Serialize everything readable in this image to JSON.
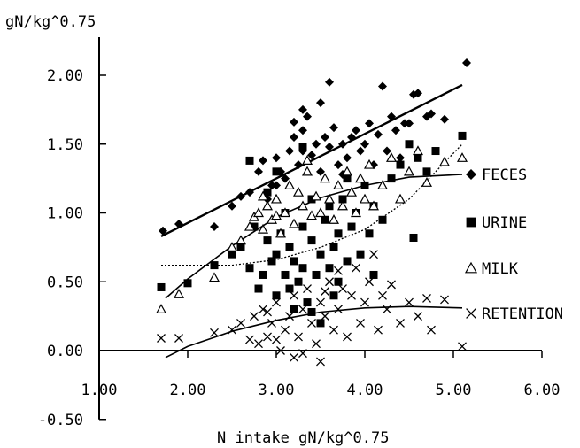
{
  "chart_data": {
    "type": "scatter",
    "ylabel": "gN/kg^0.75",
    "xlabel": "N intake  gN/kg^0.75",
    "xlim": [
      1.0,
      6.0
    ],
    "ylim": [
      -0.5,
      2.25
    ],
    "x_ticks": [
      "1.00",
      "2.00",
      "3.00",
      "4.00",
      "5.00",
      "6.00"
    ],
    "y_ticks": [
      "2.00",
      "1.50",
      "1.00",
      "0.50",
      "0.00",
      "-0.50"
    ],
    "legend_position": "right",
    "series": [
      {
        "name": "FECES",
        "marker": "diamond",
        "trend": "line",
        "trend_line": [
          [
            1.7,
            0.83
          ],
          [
            5.1,
            1.93
          ]
        ],
        "points": [
          [
            1.72,
            0.87
          ],
          [
            1.9,
            0.92
          ],
          [
            2.3,
            0.9
          ],
          [
            2.5,
            1.05
          ],
          [
            2.6,
            1.12
          ],
          [
            2.7,
            1.15
          ],
          [
            2.8,
            1.3
          ],
          [
            2.9,
            1.1
          ],
          [
            2.95,
            1.2
          ],
          [
            3.0,
            1.4
          ],
          [
            3.05,
            1.3
          ],
          [
            3.1,
            1.25
          ],
          [
            3.15,
            1.45
          ],
          [
            3.2,
            1.55
          ],
          [
            3.2,
            1.66
          ],
          [
            3.25,
            1.35
          ],
          [
            3.3,
            1.45
          ],
          [
            3.3,
            1.6
          ],
          [
            3.35,
            1.7
          ],
          [
            3.4,
            1.42
          ],
          [
            3.45,
            1.5
          ],
          [
            3.5,
            1.3
          ],
          [
            3.55,
            1.55
          ],
          [
            3.6,
            1.95
          ],
          [
            3.6,
            1.48
          ],
          [
            3.65,
            1.62
          ],
          [
            3.7,
            1.35
          ],
          [
            3.75,
            1.5
          ],
          [
            3.8,
            1.4
          ],
          [
            3.85,
            1.55
          ],
          [
            3.9,
            1.6
          ],
          [
            3.95,
            1.45
          ],
          [
            4.0,
            1.5
          ],
          [
            4.05,
            1.65
          ],
          [
            4.1,
            1.35
          ],
          [
            4.15,
            1.57
          ],
          [
            4.2,
            1.92
          ],
          [
            4.25,
            1.45
          ],
          [
            4.3,
            1.7
          ],
          [
            4.35,
            1.6
          ],
          [
            4.4,
            1.4
          ],
          [
            4.45,
            1.65
          ],
          [
            4.5,
            1.65
          ],
          [
            4.55,
            1.86
          ],
          [
            4.6,
            1.87
          ],
          [
            4.7,
            1.7
          ],
          [
            4.9,
            1.68
          ],
          [
            5.15,
            2.09
          ],
          [
            3.3,
            1.75
          ],
          [
            3.5,
            1.8
          ],
          [
            3.0,
            1.2
          ],
          [
            2.85,
            1.38
          ],
          [
            3.75,
            1.28
          ],
          [
            4.75,
            1.72
          ]
        ]
      },
      {
        "name": "URINE",
        "marker": "square",
        "trend": "dashed",
        "trend_line": [
          [
            1.7,
            0.62
          ],
          [
            2.5,
            0.62
          ],
          [
            3.0,
            0.66
          ],
          [
            3.5,
            0.75
          ],
          [
            4.0,
            0.88
          ],
          [
            4.5,
            1.1
          ],
          [
            5.1,
            1.5
          ]
        ],
        "points": [
          [
            1.7,
            0.46
          ],
          [
            2.0,
            0.49
          ],
          [
            2.3,
            0.62
          ],
          [
            2.5,
            0.7
          ],
          [
            2.6,
            0.75
          ],
          [
            2.7,
            0.6
          ],
          [
            2.7,
            1.38
          ],
          [
            2.75,
            0.9
          ],
          [
            2.8,
            0.45
          ],
          [
            2.85,
            0.55
          ],
          [
            2.9,
            0.8
          ],
          [
            2.95,
            0.65
          ],
          [
            3.0,
            0.7
          ],
          [
            3.0,
            0.4
          ],
          [
            3.05,
            0.85
          ],
          [
            3.1,
            0.55
          ],
          [
            3.1,
            1.0
          ],
          [
            3.15,
            0.75
          ],
          [
            3.2,
            0.3
          ],
          [
            3.2,
            0.65
          ],
          [
            3.25,
            0.5
          ],
          [
            3.3,
            0.9
          ],
          [
            3.3,
            0.6
          ],
          [
            3.35,
            0.35
          ],
          [
            3.4,
            0.8
          ],
          [
            3.4,
            1.1
          ],
          [
            3.45,
            0.55
          ],
          [
            3.5,
            0.7
          ],
          [
            3.5,
            0.2
          ],
          [
            3.55,
            0.95
          ],
          [
            3.6,
            0.6
          ],
          [
            3.6,
            1.05
          ],
          [
            3.65,
            0.75
          ],
          [
            3.7,
            0.5
          ],
          [
            3.7,
            0.85
          ],
          [
            3.75,
            1.1
          ],
          [
            3.8,
            0.65
          ],
          [
            3.85,
            0.9
          ],
          [
            3.9,
            1.0
          ],
          [
            3.95,
            0.7
          ],
          [
            4.0,
            1.2
          ],
          [
            4.05,
            0.85
          ],
          [
            4.1,
            1.05
          ],
          [
            4.2,
            0.95
          ],
          [
            4.3,
            1.25
          ],
          [
            4.4,
            1.35
          ],
          [
            4.5,
            1.5
          ],
          [
            4.6,
            1.4
          ],
          [
            4.7,
            1.3
          ],
          [
            4.8,
            1.45
          ],
          [
            5.1,
            1.56
          ],
          [
            4.55,
            0.82
          ],
          [
            3.3,
            1.48
          ],
          [
            3.0,
            1.3
          ],
          [
            2.9,
            1.15
          ],
          [
            3.15,
            0.45
          ],
          [
            3.4,
            0.28
          ],
          [
            3.65,
            0.4
          ],
          [
            4.1,
            0.55
          ],
          [
            3.8,
            1.25
          ]
        ]
      },
      {
        "name": "MILK",
        "marker": "triangle",
        "trend": "curve",
        "trend_line": [
          [
            1.75,
            0.38
          ],
          [
            2.0,
            0.52
          ],
          [
            2.5,
            0.76
          ],
          [
            3.0,
            0.97
          ],
          [
            3.5,
            1.11
          ],
          [
            4.0,
            1.2
          ],
          [
            4.5,
            1.26
          ],
          [
            5.1,
            1.28
          ]
        ],
        "points": [
          [
            1.7,
            0.3
          ],
          [
            1.9,
            0.41
          ],
          [
            2.3,
            0.53
          ],
          [
            2.5,
            0.75
          ],
          [
            2.6,
            0.8
          ],
          [
            2.7,
            0.9
          ],
          [
            2.75,
            0.97
          ],
          [
            2.8,
            1.0
          ],
          [
            2.85,
            0.88
          ],
          [
            2.9,
            1.05
          ],
          [
            2.95,
            0.95
          ],
          [
            3.0,
            1.1
          ],
          [
            3.05,
            0.85
          ],
          [
            3.1,
            1.0
          ],
          [
            3.15,
            1.2
          ],
          [
            3.2,
            0.92
          ],
          [
            3.25,
            1.15
          ],
          [
            3.3,
            1.05
          ],
          [
            3.35,
            1.3
          ],
          [
            3.4,
            0.98
          ],
          [
            3.45,
            1.12
          ],
          [
            3.5,
            1.0
          ],
          [
            3.55,
            1.25
          ],
          [
            3.6,
            1.1
          ],
          [
            3.65,
            0.95
          ],
          [
            3.7,
            1.2
          ],
          [
            3.75,
            1.05
          ],
          [
            3.8,
            1.3
          ],
          [
            3.85,
            1.15
          ],
          [
            3.9,
            1.0
          ],
          [
            3.95,
            1.25
          ],
          [
            4.0,
            1.1
          ],
          [
            4.05,
            1.35
          ],
          [
            4.1,
            1.05
          ],
          [
            4.2,
            1.2
          ],
          [
            4.3,
            1.4
          ],
          [
            4.4,
            1.1
          ],
          [
            4.5,
            1.3
          ],
          [
            4.6,
            1.45
          ],
          [
            4.7,
            1.22
          ],
          [
            4.9,
            1.37
          ],
          [
            5.1,
            1.4
          ],
          [
            3.35,
            1.38
          ],
          [
            3.0,
            0.98
          ],
          [
            2.85,
            1.12
          ]
        ]
      },
      {
        "name": "RETENTION",
        "marker": "cross",
        "trend": "curve",
        "trend_line": [
          [
            1.75,
            -0.05
          ],
          [
            2.0,
            0.03
          ],
          [
            2.5,
            0.14
          ],
          [
            3.0,
            0.22
          ],
          [
            3.5,
            0.28
          ],
          [
            4.0,
            0.31
          ],
          [
            4.5,
            0.32
          ],
          [
            5.1,
            0.31
          ]
        ],
        "points": [
          [
            1.7,
            0.09
          ],
          [
            1.9,
            0.09
          ],
          [
            2.3,
            0.13
          ],
          [
            2.5,
            0.15
          ],
          [
            2.6,
            0.2
          ],
          [
            2.7,
            0.08
          ],
          [
            2.75,
            0.25
          ],
          [
            2.8,
            0.05
          ],
          [
            2.85,
            0.3
          ],
          [
            2.9,
            0.1
          ],
          [
            2.95,
            0.2
          ],
          [
            3.0,
            0.35
          ],
          [
            3.05,
            0.0
          ],
          [
            3.1,
            0.15
          ],
          [
            3.15,
            0.25
          ],
          [
            3.2,
            -0.05
          ],
          [
            3.2,
            0.4
          ],
          [
            3.25,
            0.1
          ],
          [
            3.3,
            0.3
          ],
          [
            3.35,
            0.45
          ],
          [
            3.4,
            0.2
          ],
          [
            3.45,
            0.05
          ],
          [
            3.5,
            0.35
          ],
          [
            3.5,
            -0.08
          ],
          [
            3.55,
            0.25
          ],
          [
            3.6,
            0.5
          ],
          [
            3.65,
            0.15
          ],
          [
            3.7,
            0.3
          ],
          [
            3.75,
            0.45
          ],
          [
            3.8,
            0.1
          ],
          [
            3.85,
            0.4
          ],
          [
            3.9,
            0.6
          ],
          [
            3.95,
            0.2
          ],
          [
            4.0,
            0.35
          ],
          [
            4.05,
            0.5
          ],
          [
            4.1,
            0.7
          ],
          [
            4.15,
            0.15
          ],
          [
            4.2,
            0.4
          ],
          [
            4.3,
            0.48
          ],
          [
            4.4,
            0.2
          ],
          [
            4.5,
            0.35
          ],
          [
            4.6,
            0.25
          ],
          [
            4.7,
            0.38
          ],
          [
            4.75,
            0.15
          ],
          [
            4.9,
            0.37
          ],
          [
            5.1,
            0.03
          ],
          [
            3.3,
            -0.02
          ],
          [
            3.0,
            0.08
          ],
          [
            2.9,
            0.28
          ],
          [
            4.25,
            0.3
          ],
          [
            3.7,
            0.58
          ],
          [
            3.55,
            0.43
          ]
        ]
      }
    ]
  }
}
